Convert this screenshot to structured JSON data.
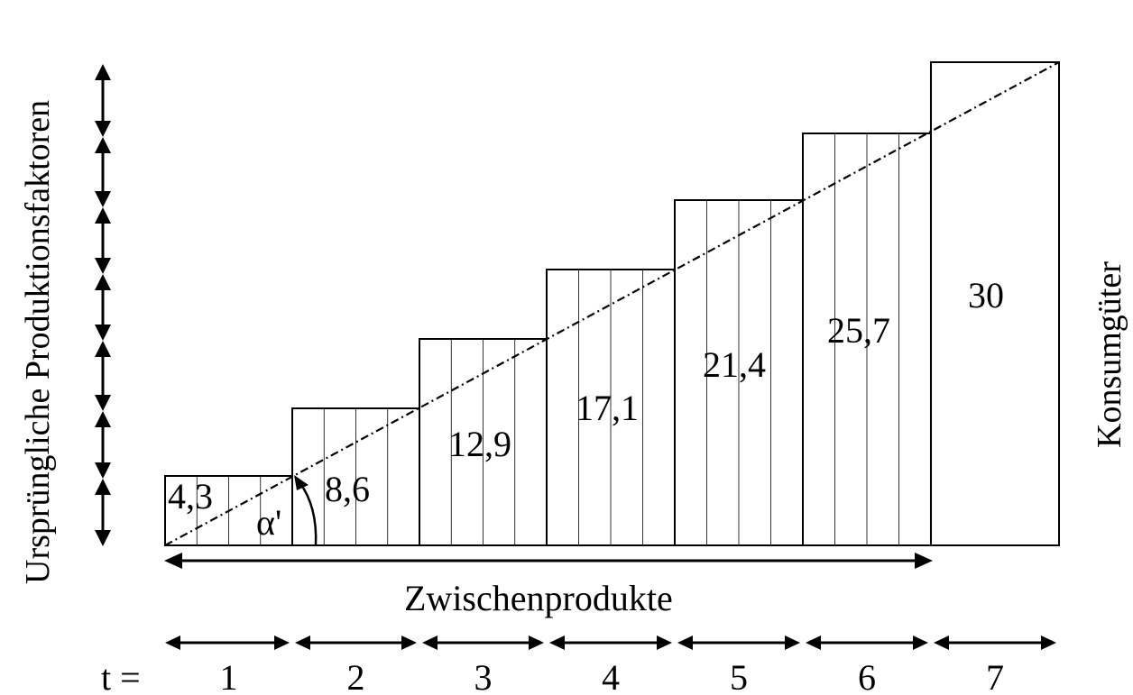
{
  "labels": {
    "left_axis": "Ursprüngliche Produktionsfaktoren",
    "right_axis": "Konsumgüter",
    "bottom_axis": "Zwischenprodukte",
    "time_prefix": "t =",
    "angle": "α'"
  },
  "blocks": [
    {
      "value_label": "4,3",
      "hatched": true
    },
    {
      "value_label": "8,6",
      "hatched": true
    },
    {
      "value_label": "12,9",
      "hatched": true
    },
    {
      "value_label": "17,1",
      "hatched": true
    },
    {
      "value_label": "21,4",
      "hatched": true
    },
    {
      "value_label": "25,7",
      "hatched": true
    },
    {
      "value_label": "30",
      "hatched": false
    }
  ],
  "periods": [
    "1",
    "2",
    "3",
    "4",
    "5",
    "6",
    "7"
  ],
  "factor_arrow_count": 7
}
